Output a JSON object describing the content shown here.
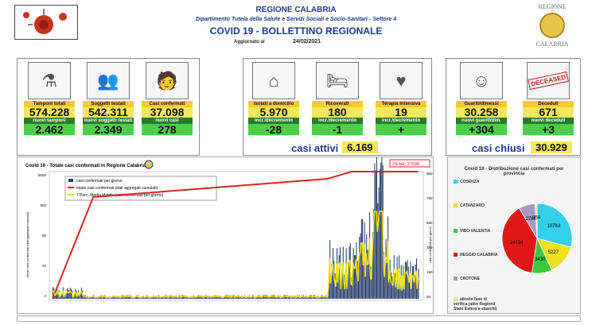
{
  "header": {
    "region": "REGIONE CALABRIA",
    "department": "Dipartimento Tutela della Salute e Servizi Sociali e Socio-Sanitari - Settore 4",
    "title": "COVID 19 - BOLLETTINO REGIONALE",
    "updated_label": "Aggiornato al",
    "updated_date": "24/02/2021",
    "crest_top": "REGIONE",
    "crest_bottom": "CALABRIA"
  },
  "stats": {
    "tamponi": {
      "label": "Tamponi totali",
      "value": "574.228",
      "sub_label": "nuovi tamponi",
      "sub_value": "2.462"
    },
    "soggetti": {
      "label": "Soggetti testati",
      "value": "542.311",
      "sub_label": "nuovi soggetti testati",
      "sub_value": "2.349"
    },
    "confermati": {
      "label": "Casi confermati",
      "value": "37.098",
      "sub_label": "nuovi casi",
      "sub_value": "278"
    },
    "isolati": {
      "label": "Isolati a domicilio",
      "value": "5.970",
      "sub_label": "incr./decremento",
      "sub_value": "-28"
    },
    "ricoverati": {
      "label": "Ricoverati",
      "value": "180",
      "sub_label": "incr./decremento",
      "sub_value": "-1"
    },
    "intensiva": {
      "label": "Terapia intensiva",
      "value": "19",
      "sub_label": "incr./decremento",
      "sub_value": "+"
    },
    "guariti": {
      "label": "Guariti/dimessi",
      "value": "30.258",
      "sub_label": "nuovi guariti/dim.",
      "sub_value": "+304"
    },
    "deceduti": {
      "label": "Deceduti",
      "value": "671",
      "sub_label": "nuovi deceduti",
      "sub_value": "+3"
    }
  },
  "attivi": {
    "label": "casi attivi",
    "value": "6.169"
  },
  "chiusi": {
    "label": "casi chiusi",
    "value": "30.929"
  },
  "deceased_stamp": "DECEASED",
  "icons": [
    "lab-icon",
    "people-icon",
    "confirmed-icon",
    "house-icon",
    "hospital-bed-icon",
    "icu-icon",
    "recovered-icon",
    "deceased-icon"
  ],
  "chart_data": {
    "type": "bar",
    "title": "Covid 19 - Totale casi confermati in Regione Calabria",
    "annotation": "24-feb; 37098",
    "ylabel_left": "totale casi confermati (dati aggregati cumulati)",
    "ylabel_right": "casi confermati per giorno",
    "series": [
      {
        "name": "casi confermati per giorno",
        "color": "#1f3864"
      },
      {
        "name": "totale casi confermati (dati aggregati cumulati)",
        "color": "#e02020"
      },
      {
        "name": "7 Perc. Media Mobile (casi confermati per giorno)",
        "color": "#f0e020"
      }
    ],
    "left_ticks": [
      "8000",
      "800",
      "80",
      "20",
      "2"
    ],
    "right_ticks": [
      "950",
      "750",
      "550",
      "350",
      "150",
      "50"
    ]
  },
  "pie": {
    "title": "Covid 19 - Distribuzione casi confermati per provincia",
    "legend": [
      {
        "name": "COSENZA",
        "color": "#33d0e8"
      },
      {
        "name": "CATANZARO",
        "color": "#f0e020"
      },
      {
        "name": "VIBO VALENTIA",
        "color": "#3cc83c"
      },
      {
        "name": "REGGIO CALABRIA",
        "color": "#e01818"
      },
      {
        "name": "CROTONE",
        "color": "#a898c8"
      },
      {
        "name": "altro/in fase di verifica (altre Regioni/ Stato Estero e sbarchi)",
        "color": "#e8e0a0"
      }
    ],
    "slices": [
      {
        "name": "COSENZA",
        "value": 10763,
        "label": "10763",
        "color": "#33d0e8"
      },
      {
        "name": "CATANZARO",
        "value": 5227,
        "label": "5227",
        "color": "#f0e020"
      },
      {
        "name": "VIBO VALENTIA",
        "value": 3430,
        "label": "3430",
        "color": "#3cc83c"
      },
      {
        "name": "REGGIO CALABRIA",
        "value": 14534,
        "label": "14534",
        "color": "#e01818"
      },
      {
        "name": "CROTONE",
        "value": 2785,
        "label": "2785",
        "color": "#a898c8"
      },
      {
        "name": "altro",
        "value": 359,
        "label": "359",
        "color": "#e8e0a0"
      }
    ]
  }
}
